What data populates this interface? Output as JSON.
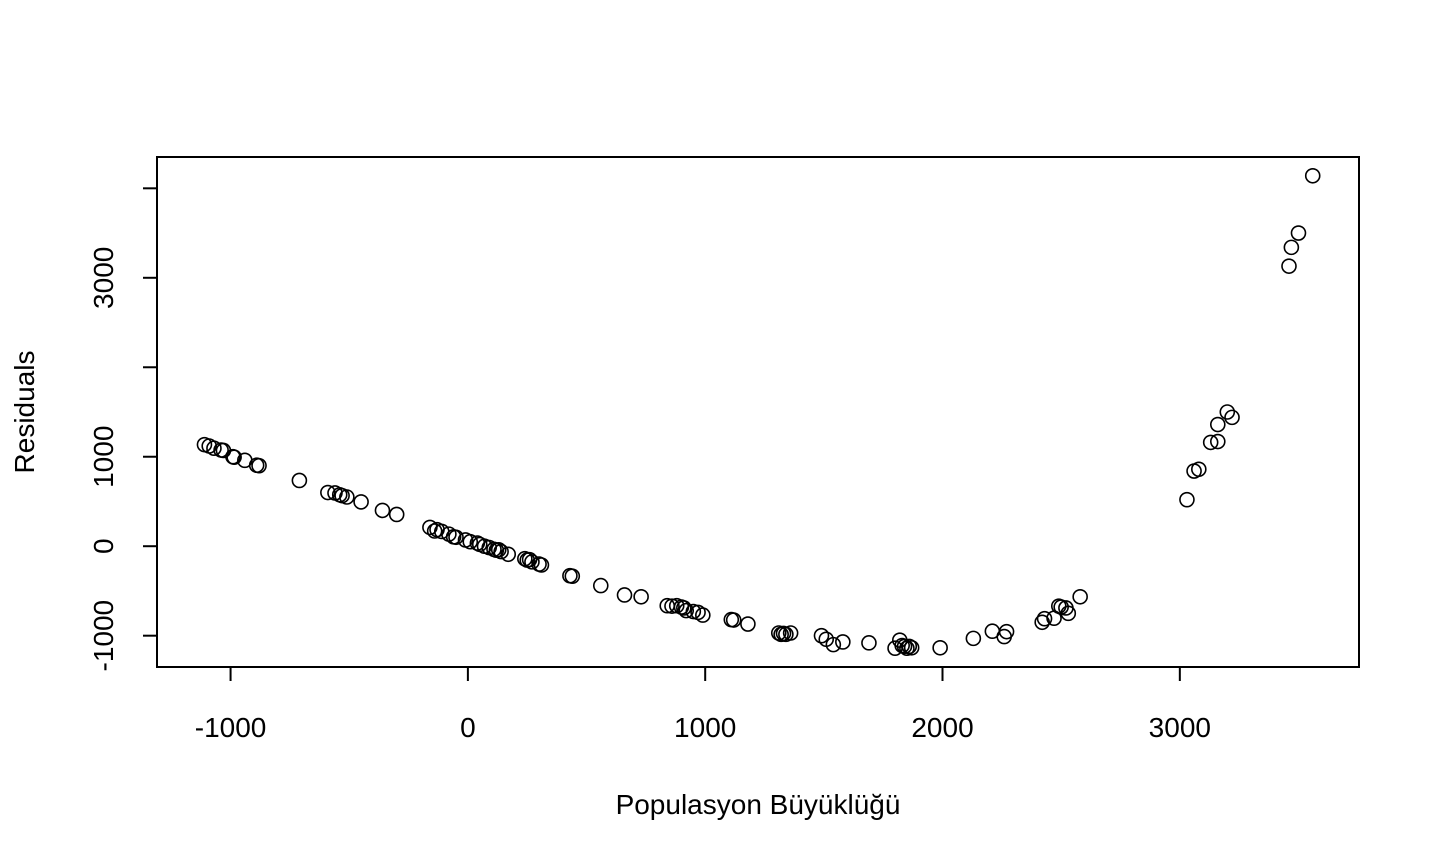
{
  "chart_data": {
    "type": "scatter",
    "xlabel": "Populasyon Büyüklüğü",
    "ylabel": "Residuals",
    "xlim": [
      -1310,
      3755
    ],
    "ylim": [
      -1350,
      4350
    ],
    "x_ticks": [
      -1000,
      0,
      1000,
      2000,
      3000
    ],
    "x_tick_labels": [
      "-1000",
      "0",
      "1000",
      "2000",
      "3000"
    ],
    "y_ticks": [
      -1000,
      0,
      1000,
      2000,
      3000,
      4000
    ],
    "y_tick_labels": [
      "-1000",
      "0",
      "1000",
      "",
      "3000",
      ""
    ],
    "grid": false,
    "legend": "none",
    "marker": "open-circle",
    "points": [
      [
        -1110,
        1135
      ],
      [
        -1090,
        1120
      ],
      [
        -1070,
        1095
      ],
      [
        -1040,
        1075
      ],
      [
        -1030,
        1070
      ],
      [
        -990,
        1000
      ],
      [
        -985,
        995
      ],
      [
        -940,
        960
      ],
      [
        -890,
        905
      ],
      [
        -880,
        900
      ],
      [
        -710,
        735
      ],
      [
        -590,
        600
      ],
      [
        -560,
        595
      ],
      [
        -540,
        575
      ],
      [
        -530,
        565
      ],
      [
        -510,
        550
      ],
      [
        -450,
        495
      ],
      [
        -360,
        400
      ],
      [
        -300,
        355
      ],
      [
        -160,
        210
      ],
      [
        -140,
        170
      ],
      [
        -130,
        185
      ],
      [
        -110,
        165
      ],
      [
        -80,
        135
      ],
      [
        -60,
        105
      ],
      [
        -50,
        100
      ],
      [
        -10,
        70
      ],
      [
        10,
        50
      ],
      [
        40,
        35
      ],
      [
        50,
        20
      ],
      [
        70,
        0
      ],
      [
        90,
        -15
      ],
      [
        110,
        -35
      ],
      [
        120,
        -45
      ],
      [
        130,
        -40
      ],
      [
        140,
        -60
      ],
      [
        170,
        -90
      ],
      [
        240,
        -140
      ],
      [
        250,
        -155
      ],
      [
        260,
        -150
      ],
      [
        270,
        -175
      ],
      [
        300,
        -200
      ],
      [
        310,
        -210
      ],
      [
        430,
        -330
      ],
      [
        440,
        -335
      ],
      [
        560,
        -440
      ],
      [
        660,
        -545
      ],
      [
        730,
        -565
      ],
      [
        840,
        -665
      ],
      [
        860,
        -670
      ],
      [
        880,
        -665
      ],
      [
        900,
        -680
      ],
      [
        910,
        -690
      ],
      [
        920,
        -720
      ],
      [
        950,
        -730
      ],
      [
        970,
        -740
      ],
      [
        990,
        -770
      ],
      [
        1110,
        -820
      ],
      [
        1120,
        -825
      ],
      [
        1180,
        -870
      ],
      [
        1310,
        -970
      ],
      [
        1320,
        -985
      ],
      [
        1330,
        -975
      ],
      [
        1340,
        -985
      ],
      [
        1360,
        -970
      ],
      [
        1490,
        -1000
      ],
      [
        1510,
        -1040
      ],
      [
        1540,
        -1100
      ],
      [
        1580,
        -1070
      ],
      [
        1690,
        -1080
      ],
      [
        1800,
        -1140
      ],
      [
        1820,
        -1050
      ],
      [
        1830,
        -1110
      ],
      [
        1840,
        -1120
      ],
      [
        1850,
        -1140
      ],
      [
        1860,
        -1120
      ],
      [
        1870,
        -1135
      ],
      [
        1990,
        -1135
      ],
      [
        2130,
        -1030
      ],
      [
        2210,
        -950
      ],
      [
        2260,
        -1010
      ],
      [
        2270,
        -955
      ],
      [
        2420,
        -850
      ],
      [
        2430,
        -810
      ],
      [
        2470,
        -805
      ],
      [
        2490,
        -670
      ],
      [
        2500,
        -680
      ],
      [
        2520,
        -690
      ],
      [
        2530,
        -750
      ],
      [
        2580,
        -565
      ],
      [
        3030,
        520
      ],
      [
        3060,
        840
      ],
      [
        3080,
        860
      ],
      [
        3130,
        1160
      ],
      [
        3160,
        1170
      ],
      [
        3160,
        1360
      ],
      [
        3200,
        1500
      ],
      [
        3220,
        1440
      ],
      [
        3460,
        3130
      ],
      [
        3470,
        3340
      ],
      [
        3500,
        3500
      ],
      [
        3560,
        4140
      ]
    ]
  }
}
